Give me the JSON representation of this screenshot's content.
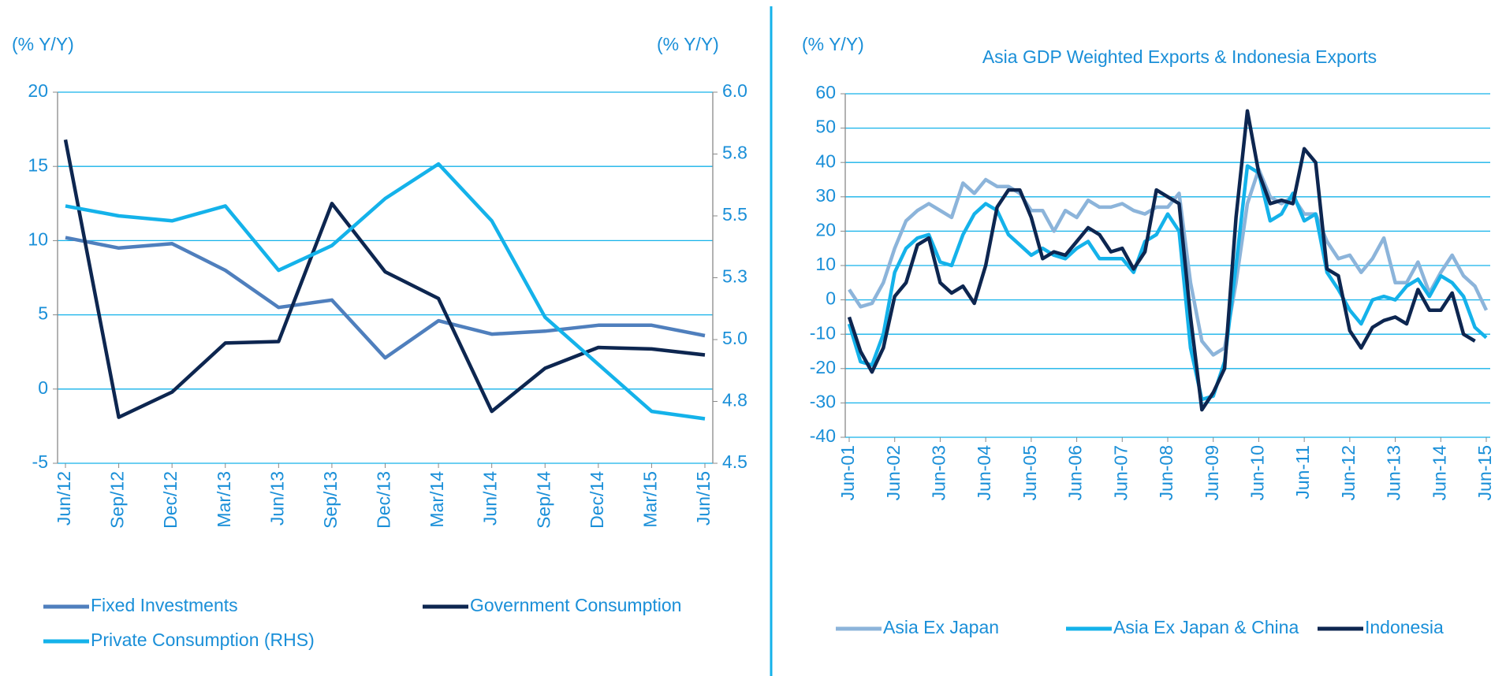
{
  "chart_data": [
    {
      "type": "line",
      "y_label": "(% Y/Y)",
      "y2_label": "(% Y/Y)",
      "categories": [
        "Jun/12",
        "Sep/12",
        "Dec/12",
        "Mar/13",
        "Jun/13",
        "Sep/13",
        "Dec/13",
        "Mar/14",
        "Jun/14",
        "Sep/14",
        "Dec/14",
        "Mar/15",
        "Jun/15"
      ],
      "series": [
        {
          "name": "Fixed Investments",
          "color": "#4f7fbd",
          "values": [
            10.2,
            9.5,
            9.8,
            8.0,
            5.5,
            6.0,
            2.1,
            4.6,
            3.7,
            3.9,
            4.3,
            4.3,
            3.6
          ]
        },
        {
          "name": "Government Consumption",
          "color": "#0d2650",
          "values": [
            16.8,
            -1.9,
            -0.2,
            3.1,
            3.2,
            12.5,
            7.9,
            6.1,
            -1.5,
            1.4,
            2.8,
            2.7,
            2.3
          ]
        },
        {
          "name": "Private Consumption (RHS)",
          "color": "#14b2ea",
          "axis": "y2",
          "values": [
            5.54,
            5.5,
            5.48,
            5.54,
            5.28,
            5.38,
            5.57,
            5.71,
            5.48,
            5.09,
            4.9,
            4.71,
            4.68
          ]
        }
      ],
      "ylim": [
        -5,
        20
      ],
      "yticks": [
        -5,
        0,
        5,
        10,
        15,
        20
      ],
      "y2lim": [
        4.5,
        6.0
      ],
      "y2ticks": [
        4.5,
        {
          "value": 4.75,
          "label": "4.8"
        },
        {
          "value": 5.0,
          "label": "5.0"
        },
        {
          "value": 5.25,
          "label": "5.3"
        },
        {
          "value": 5.5,
          "label": "5.5"
        },
        {
          "value": 5.75,
          "label": "5.8"
        },
        {
          "value": 6.0,
          "label": "6.0"
        }
      ],
      "grid": true
    },
    {
      "type": "line",
      "title": "Asia GDP Weighted Exports & Indonesia Exports",
      "y_label": "(% Y/Y)",
      "categories": [
        "Jun-01",
        null,
        null,
        null,
        "Jun-02",
        null,
        null,
        null,
        "Jun-03",
        null,
        null,
        null,
        "Jun-04",
        null,
        null,
        null,
        "Jun-05",
        null,
        null,
        null,
        "Jun-06",
        null,
        null,
        null,
        "Jun-07",
        null,
        null,
        null,
        "Jun-08",
        null,
        null,
        null,
        "Jun-09",
        null,
        null,
        null,
        "Jun-10",
        null,
        null,
        null,
        "Jun-11",
        null,
        null,
        null,
        "Jun-12",
        null,
        null,
        null,
        "Jun-13",
        null,
        null,
        null,
        "Jun-14",
        null,
        null,
        null,
        "Jun-15"
      ],
      "series": [
        {
          "name": "Asia Ex Japan",
          "color": "#8cb4da",
          "values": [
            3,
            -2,
            -1,
            5,
            15,
            23,
            26,
            28,
            26,
            24,
            34,
            31,
            35,
            33,
            33,
            31,
            26,
            26,
            20,
            26,
            24,
            29,
            27,
            27,
            28,
            26,
            25,
            27,
            27,
            31,
            5,
            -12,
            -16,
            -14,
            5,
            28,
            38,
            30,
            28,
            30,
            25,
            25,
            17,
            12,
            13,
            8,
            12,
            18,
            5,
            5,
            11,
            2,
            8,
            13,
            7,
            4,
            -3
          ]
        },
        {
          "name": "Asia Ex Japan & China",
          "color": "#14b2ea",
          "values": [
            -7,
            -18,
            -19,
            -10,
            8,
            15,
            18,
            19,
            11,
            10,
            19,
            25,
            28,
            26,
            19,
            16,
            13,
            15,
            13,
            12,
            15,
            17,
            12,
            12,
            12,
            8,
            17,
            19,
            25,
            20,
            -14,
            -29,
            -28,
            -18,
            10,
            39,
            37,
            23,
            25,
            31,
            23,
            25,
            8,
            3,
            -3,
            -7,
            0,
            1,
            0,
            4,
            6,
            1,
            7,
            5,
            1,
            -8,
            -11
          ]
        },
        {
          "name": "Indonesia",
          "color": "#0d2650",
          "values": [
            -5,
            -15,
            -21,
            -14,
            1,
            5,
            16,
            18,
            5,
            2,
            4,
            -1,
            10,
            27,
            32,
            32,
            24,
            12,
            14,
            13,
            17,
            21,
            19,
            14,
            15,
            9,
            14,
            32,
            30,
            28,
            -5,
            -32,
            -27,
            -20,
            24,
            55,
            37,
            28,
            29,
            28,
            44,
            40,
            9,
            7,
            -9,
            -14,
            -8,
            -6,
            -5,
            -7,
            3,
            -3,
            -3,
            2,
            -10,
            -12,
            null
          ]
        }
      ],
      "ylim": [
        -40,
        60
      ],
      "yticks": [
        -40,
        -30,
        -20,
        -10,
        0,
        10,
        20,
        30,
        40,
        50,
        60
      ],
      "grid": true
    }
  ]
}
